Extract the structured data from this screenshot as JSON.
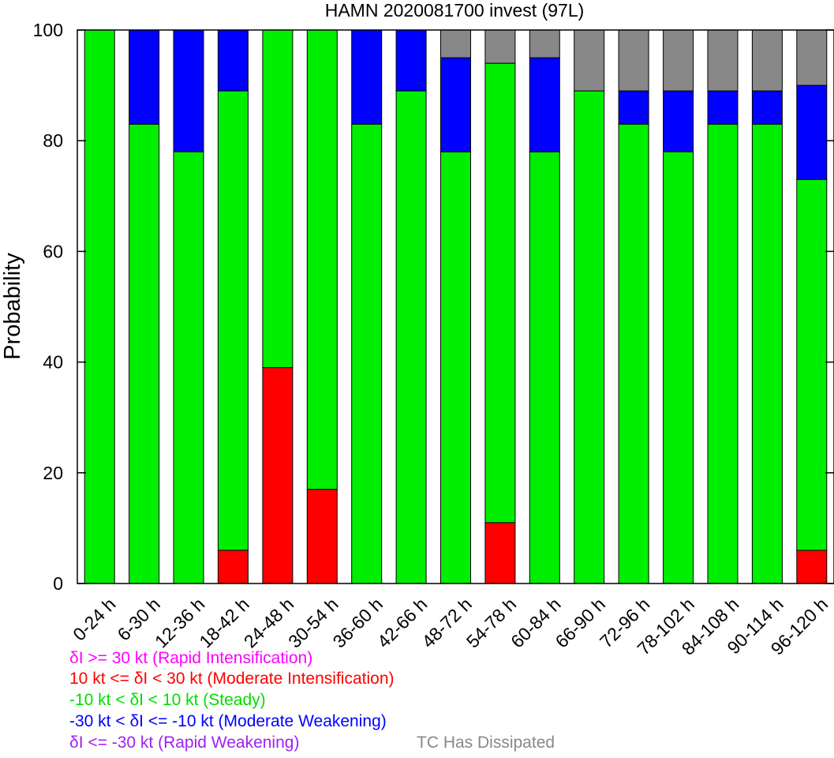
{
  "chart_data": {
    "type": "bar",
    "stacked": true,
    "title": "HAMN 2020081700 invest (97L)",
    "ylabel": "Probability",
    "xlabel": "",
    "ylim": [
      0,
      100
    ],
    "yticks": [
      0,
      20,
      40,
      60,
      80,
      100
    ],
    "categories": [
      "0-24 h",
      "6-30 h",
      "12-36 h",
      "18-42 h",
      "24-48 h",
      "30-54 h",
      "36-60 h",
      "42-66 h",
      "48-72 h",
      "54-78 h",
      "60-84 h",
      "66-90 h",
      "72-96 h",
      "78-102 h",
      "84-108 h",
      "90-114 h",
      "96-120 h"
    ],
    "series": [
      {
        "name": "Rapid Intensification",
        "color": "#ff00ff",
        "values": [
          0,
          0,
          0,
          0,
          0,
          0,
          0,
          0,
          0,
          0,
          0,
          0,
          0,
          0,
          0,
          0,
          0
        ]
      },
      {
        "name": "Moderate Intensification",
        "color": "#ff0000",
        "values": [
          0,
          0,
          0,
          6,
          39,
          17,
          0,
          0,
          0,
          11,
          0,
          0,
          0,
          0,
          0,
          0,
          6
        ]
      },
      {
        "name": "Steady",
        "color": "#00ee00",
        "values": [
          100,
          83,
          78,
          83,
          61,
          83,
          83,
          89,
          78,
          83,
          78,
          89,
          83,
          78,
          83,
          83,
          67
        ]
      },
      {
        "name": "Moderate Weakening",
        "color": "#0000ff",
        "values": [
          0,
          17,
          22,
          11,
          0,
          0,
          17,
          11,
          17,
          0,
          17,
          0,
          6,
          11,
          6,
          6,
          17
        ]
      },
      {
        "name": "Rapid Weakening",
        "color": "#a020f0",
        "values": [
          0,
          0,
          0,
          0,
          0,
          0,
          0,
          0,
          0,
          0,
          0,
          0,
          0,
          0,
          0,
          0,
          0
        ]
      },
      {
        "name": "TC Has Dissipated",
        "color": "#888888",
        "values": [
          0,
          0,
          0,
          0,
          0,
          0,
          0,
          0,
          5,
          6,
          5,
          11,
          11,
          11,
          11,
          11,
          10
        ]
      }
    ],
    "legend": [
      {
        "text": "δI >= 30 kt (Rapid Intensification)",
        "color": "#ff00ff"
      },
      {
        "text": "10 kt <= δI < 30 kt (Moderate Intensification)",
        "color": "#ff0000"
      },
      {
        "text": "-10 kt < δI < 10 kt (Steady)",
        "color": "#00dd00"
      },
      {
        "text": "-30 kt < δI <= -10 kt (Moderate Weakening)",
        "color": "#0000ff"
      },
      {
        "text": "δI <= -30 kt (Rapid Weakening)",
        "color": "#a020f0"
      },
      {
        "text": "TC Has Dissipated",
        "color": "#888888"
      }
    ]
  }
}
